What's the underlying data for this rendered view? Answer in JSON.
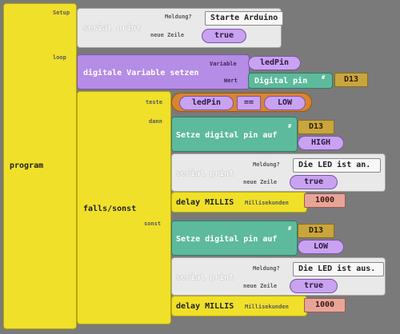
{
  "program": {
    "label": "program",
    "setup_label": "Setup",
    "loop_label": "loop"
  },
  "setup_block": {
    "title": "serial print",
    "field1": "Meldung?",
    "value1": "Starte Arduino",
    "field2": "neue Zeile",
    "value2": "true"
  },
  "digital_var": {
    "title": "digitale Variable setzen",
    "field1": "Variable",
    "value1": "ledPin",
    "field2": "Wert",
    "value2": "Digital pin",
    "hash": "#",
    "pin": "D13"
  },
  "ifelse": {
    "label": "falls/sonst",
    "test_label": "teste",
    "then_label": "dann",
    "else_label": "sonst",
    "cond_left": "ledPin",
    "cond_op": "==",
    "cond_right": "LOW"
  },
  "then_branch": {
    "set_title": "Setze digital pin auf",
    "hash": "#",
    "pin": "D13",
    "value": "HIGH",
    "print_title": "serial print",
    "print_field1": "Meldung?",
    "print_value1": "Die LED ist an.",
    "print_field2": "neue Zeile",
    "print_value2": "true",
    "delay_title": "delay MILLIS",
    "delay_field": "Millisekunden",
    "delay_value": "1000"
  },
  "else_branch": {
    "set_title": "Setze digital pin auf",
    "hash": "#",
    "pin": "D13",
    "value": "LOW",
    "print_title": "serial print",
    "print_field1": "Meldung?",
    "print_value1": "Die LED ist aus.",
    "print_field2": "neue Zeile",
    "print_value2": "true",
    "delay_title": "delay MILLIS",
    "delay_field": "Millisekunden",
    "delay_value": "1000"
  }
}
